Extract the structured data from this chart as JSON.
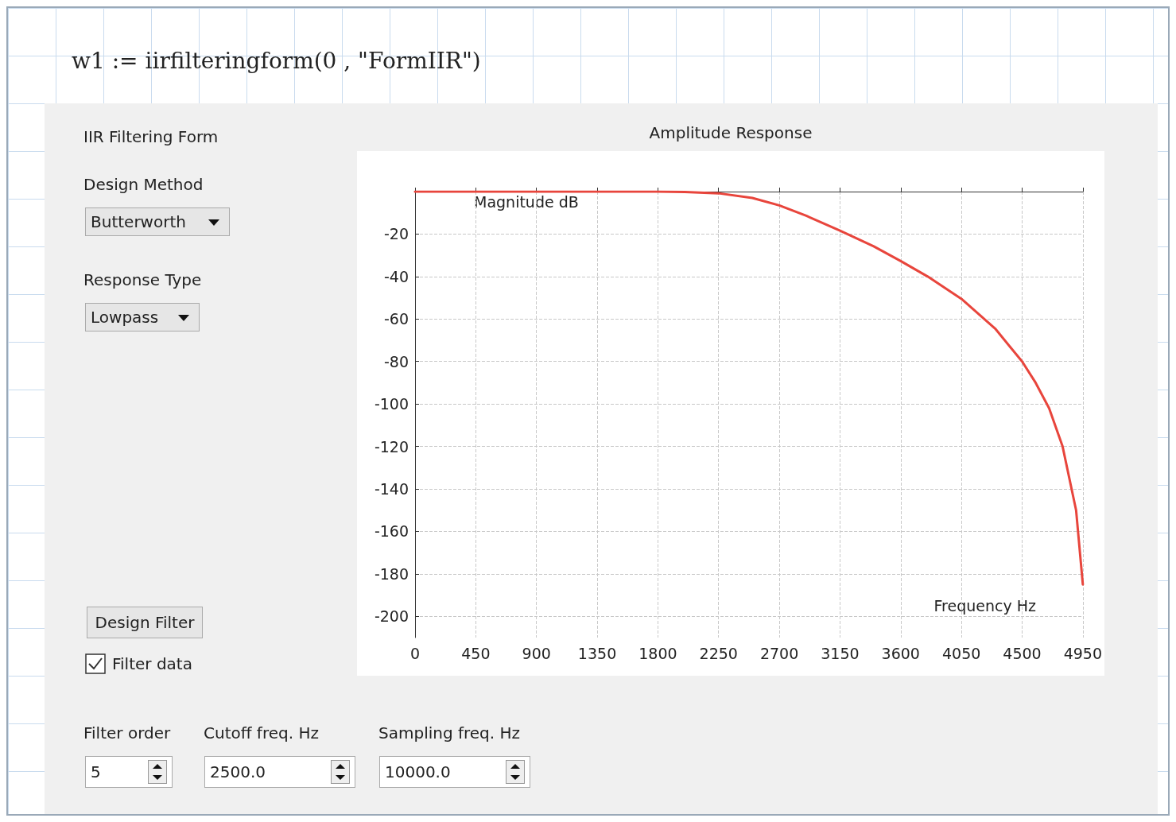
{
  "chart_data": {
    "type": "line",
    "title": "Amplitude Response",
    "xlabel": "Frequency Hz",
    "ylabel": "Magnitude dB",
    "x": [
      0,
      450,
      900,
      1350,
      1800,
      2000,
      2250,
      2500,
      2700,
      2900,
      3150,
      3400,
      3600,
      3800,
      4050,
      4300,
      4500,
      4600,
      4700,
      4800,
      4900,
      4950
    ],
    "series": [
      {
        "color": "#e8453c",
        "values": [
          0,
          0,
          0,
          0,
          0,
          -0.2,
          -0.8,
          -3,
          -6.5,
          -11.4,
          -18.4,
          -25.8,
          -32.7,
          -40,
          -50.5,
          -64.5,
          -80,
          -90,
          -102,
          -120,
          -150,
          -185
        ]
      }
    ],
    "xlim": [
      0,
      4950
    ],
    "xticks": [
      0,
      450,
      900,
      1350,
      1800,
      2250,
      2700,
      3150,
      3600,
      4050,
      4500,
      4950
    ],
    "ylim": [
      -210,
      0
    ],
    "yticks": [
      -200,
      -180,
      -160,
      -140,
      -120,
      -100,
      -80,
      -60,
      -40,
      -20
    ],
    "grid": true,
    "line_style": "solid",
    "marker": "none",
    "annotations": [
      "w1 := iirfilteringform(0 , \"FormIIR\")",
      "IIR Filtering Form",
      "Design Method",
      "Butterworth",
      "Response Type",
      "Lowpass",
      "Design Filter",
      "Filter data",
      "Filter order",
      "Cutoff freq. Hz",
      "Sampling freq. Hz",
      "5",
      "2500.0",
      "10000.0"
    ]
  }
}
